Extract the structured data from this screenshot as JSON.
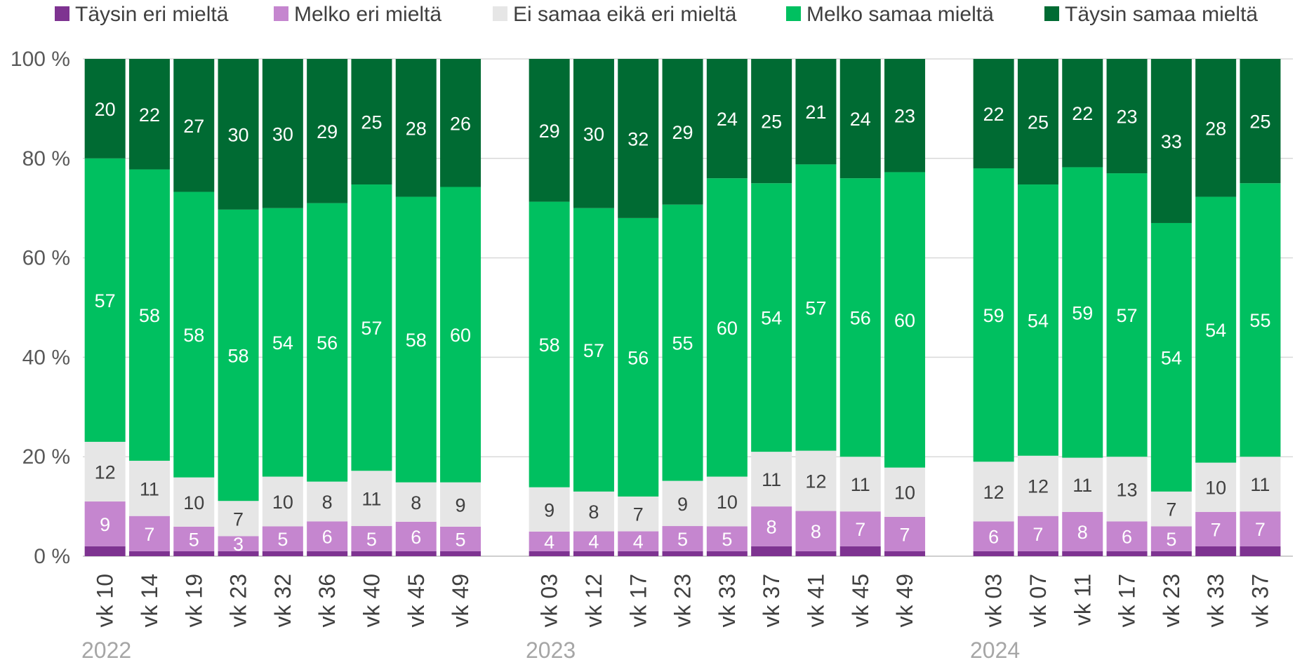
{
  "chart_data": {
    "type": "bar",
    "stacked": true,
    "percent": true,
    "ylim": [
      0,
      100
    ],
    "y_ticks": [
      "0 %",
      "20 %",
      "40 %",
      "60 %",
      "80 %",
      "100 %"
    ],
    "gridlines": true,
    "legend_position": "top",
    "series": [
      {
        "name": "Täysin eri mieltä",
        "color": "#7e3391"
      },
      {
        "name": "Melko eri mieltä",
        "color": "#c586cf"
      },
      {
        "name": "Ei samaa eikä eri mieltä",
        "color": "#e6e6e6"
      },
      {
        "name": "Melko samaa mieltä",
        "color": "#00c060"
      },
      {
        "name": "Täysin samaa mieltä",
        "color": "#006b33"
      }
    ],
    "groups": [
      {
        "label": "2022",
        "bars": [
          {
            "category": "vk 10",
            "values": [
              2,
              9,
              12,
              57,
              20
            ]
          },
          {
            "category": "vk 14",
            "values": [
              1,
              7,
              11,
              58,
              22
            ]
          },
          {
            "category": "vk 19",
            "values": [
              1,
              5,
              10,
              58,
              27
            ]
          },
          {
            "category": "vk 23",
            "values": [
              1,
              3,
              7,
              58,
              30
            ]
          },
          {
            "category": "vk 32",
            "values": [
              1,
              5,
              10,
              54,
              30
            ]
          },
          {
            "category": "vk 36",
            "values": [
              1,
              6,
              8,
              56,
              29
            ]
          },
          {
            "category": "vk 40",
            "values": [
              1,
              5,
              11,
              57,
              25
            ]
          },
          {
            "category": "vk 45",
            "values": [
              1,
              6,
              8,
              58,
              28
            ]
          },
          {
            "category": "vk 49",
            "values": [
              1,
              5,
              9,
              60,
              26
            ]
          }
        ]
      },
      {
        "label": "2023",
        "bars": [
          {
            "category": "vk 03",
            "values": [
              1,
              4,
              9,
              58,
              29
            ]
          },
          {
            "category": "vk 12",
            "values": [
              1,
              4,
              8,
              57,
              30
            ]
          },
          {
            "category": "vk 17",
            "values": [
              1,
              4,
              7,
              56,
              32
            ]
          },
          {
            "category": "vk 23",
            "values": [
              1,
              5,
              9,
              55,
              29
            ]
          },
          {
            "category": "vk 33",
            "values": [
              1,
              5,
              10,
              60,
              24
            ]
          },
          {
            "category": "vk 37",
            "values": [
              2,
              8,
              11,
              54,
              25
            ]
          },
          {
            "category": "vk 41",
            "values": [
              1,
              8,
              12,
              57,
              21
            ]
          },
          {
            "category": "vk 45",
            "values": [
              2,
              7,
              11,
              56,
              24
            ]
          },
          {
            "category": "vk 49",
            "values": [
              1,
              7,
              10,
              60,
              23
            ]
          }
        ]
      },
      {
        "label": "2024",
        "bars": [
          {
            "category": "vk 03",
            "values": [
              1,
              6,
              12,
              59,
              22
            ]
          },
          {
            "category": "vk 07",
            "values": [
              1,
              7,
              12,
              54,
              25
            ]
          },
          {
            "category": "vk 11",
            "values": [
              1,
              8,
              11,
              59,
              22
            ]
          },
          {
            "category": "vk 17",
            "values": [
              1,
              6,
              13,
              57,
              23
            ]
          },
          {
            "category": "vk 23",
            "values": [
              1,
              5,
              7,
              54,
              33
            ]
          },
          {
            "category": "vk 33",
            "values": [
              2,
              7,
              10,
              54,
              28
            ]
          },
          {
            "category": "vk 37",
            "values": [
              2,
              7,
              11,
              55,
              25
            ]
          }
        ]
      }
    ]
  }
}
